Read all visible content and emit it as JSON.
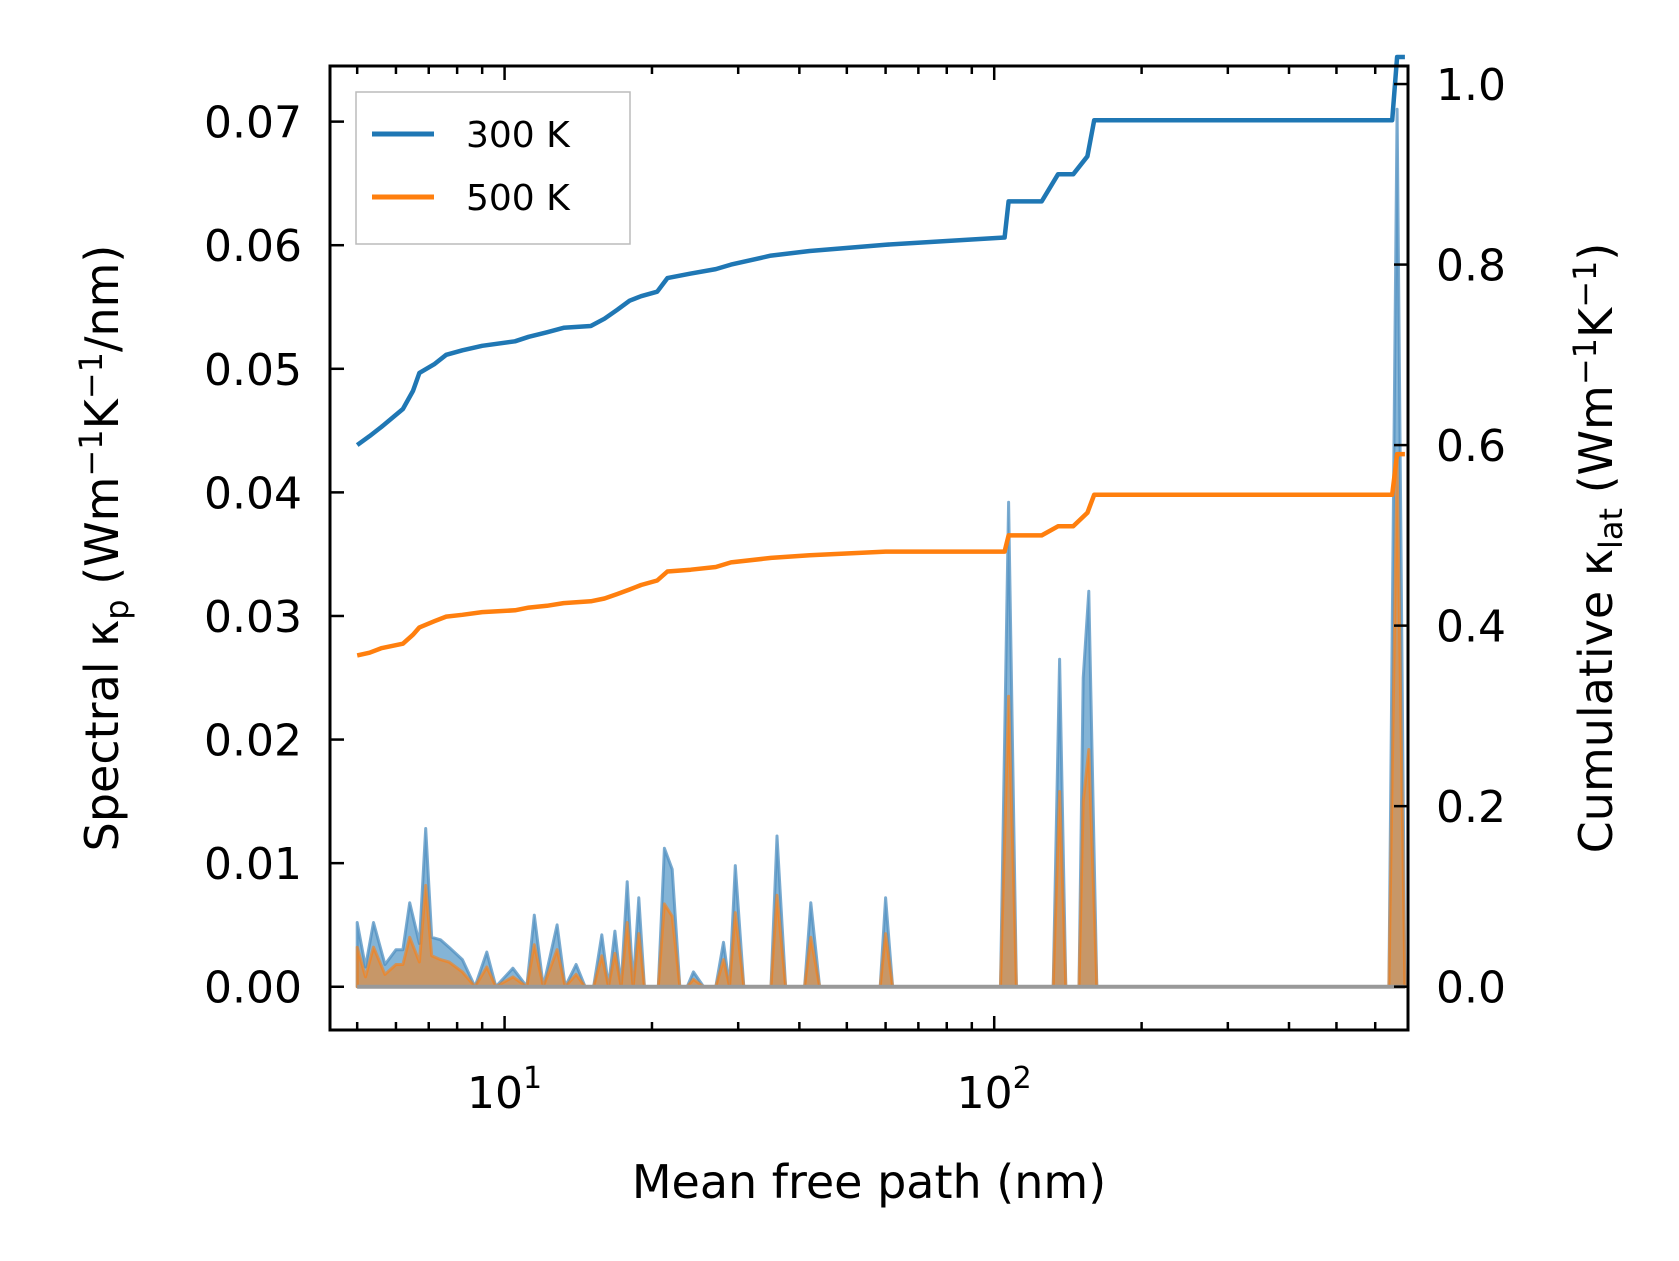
{
  "chart_data": {
    "type": "line",
    "xscale": "log",
    "xlabel": "Mean free path (nm)",
    "ylabel_left": "Spectral κp (Wm−1K−1/nm)",
    "ylabel_right": "Cumulative κlat (Wm−1K−1)",
    "ylabel_left_parts": {
      "pre": "Spectral κ",
      "sub": "p",
      "mid1": " (Wm",
      "sup1": "−1",
      "mid2": "K",
      "sup2": "−1",
      "post": "/nm)"
    },
    "ylabel_right_parts": {
      "pre": "Cumulative κ",
      "sub": "lat",
      "mid1": " (Wm",
      "sup1": "−1",
      "mid2": "K",
      "sup2": "−1",
      "post": ")"
    },
    "xlim": [
      4.4,
      700
    ],
    "ylim_left": [
      -0.0035,
      0.0745
    ],
    "ylim_right": [
      -0.048,
      1.02
    ],
    "x_ticks": [
      {
        "value": 10,
        "base": "10",
        "exp": "1"
      },
      {
        "value": 100,
        "base": "10",
        "exp": "2"
      }
    ],
    "y_ticks_left": [
      {
        "value": 0.0,
        "label": "0.00"
      },
      {
        "value": 0.01,
        "label": "0.01"
      },
      {
        "value": 0.02,
        "label": "0.02"
      },
      {
        "value": 0.03,
        "label": "0.03"
      },
      {
        "value": 0.04,
        "label": "0.04"
      },
      {
        "value": 0.05,
        "label": "0.05"
      },
      {
        "value": 0.06,
        "label": "0.06"
      },
      {
        "value": 0.07,
        "label": "0.07"
      }
    ],
    "y_ticks_right": [
      {
        "value": 0.0,
        "label": "0.0"
      },
      {
        "value": 0.2,
        "label": "0.2"
      },
      {
        "value": 0.4,
        "label": "0.4"
      },
      {
        "value": 0.6,
        "label": "0.6"
      },
      {
        "value": 0.8,
        "label": "0.8"
      },
      {
        "value": 1.0,
        "label": "1.0"
      }
    ],
    "legend": {
      "position": "top-left",
      "entries": [
        "300 K",
        "500 K"
      ]
    },
    "series": [
      {
        "name": "300 K",
        "color": "#1f77b4",
        "cumulative": [
          [
            5.0,
            0.6
          ],
          [
            5.3,
            0.61
          ],
          [
            5.6,
            0.62
          ],
          [
            6.2,
            0.64
          ],
          [
            6.5,
            0.66
          ],
          [
            6.7,
            0.68
          ],
          [
            7.2,
            0.69
          ],
          [
            7.6,
            0.7
          ],
          [
            8.2,
            0.705
          ],
          [
            9.0,
            0.71
          ],
          [
            10.5,
            0.715
          ],
          [
            11.2,
            0.72
          ],
          [
            12.2,
            0.725
          ],
          [
            13.2,
            0.73
          ],
          [
            15.0,
            0.732
          ],
          [
            16.0,
            0.74
          ],
          [
            17.0,
            0.75
          ],
          [
            18.0,
            0.76
          ],
          [
            19.0,
            0.765
          ],
          [
            20.5,
            0.77
          ],
          [
            21.5,
            0.785
          ],
          [
            24.0,
            0.79
          ],
          [
            27.0,
            0.795
          ],
          [
            29.0,
            0.8
          ],
          [
            35.0,
            0.81
          ],
          [
            42.0,
            0.815
          ],
          [
            60.0,
            0.822
          ],
          [
            105.0,
            0.83
          ],
          [
            107.0,
            0.87
          ],
          [
            125.0,
            0.87
          ],
          [
            135.0,
            0.9
          ],
          [
            145.0,
            0.9
          ],
          [
            155.0,
            0.92
          ],
          [
            160.0,
            0.96
          ],
          [
            650.0,
            0.96
          ],
          [
            665.0,
            1.03
          ],
          [
            690.0,
            1.03
          ]
        ],
        "spectral": [
          [
            5.0,
            0.0052
          ],
          [
            5.2,
            0.0016
          ],
          [
            5.4,
            0.0052
          ],
          [
            5.7,
            0.0018
          ],
          [
            6.0,
            0.003
          ],
          [
            6.2,
            0.003
          ],
          [
            6.4,
            0.0068
          ],
          [
            6.7,
            0.0035
          ],
          [
            6.9,
            0.0128
          ],
          [
            7.1,
            0.004
          ],
          [
            7.4,
            0.0038
          ],
          [
            7.7,
            0.0032
          ],
          [
            8.2,
            0.0022
          ],
          [
            8.7,
            0.0
          ],
          [
            9.2,
            0.0028
          ],
          [
            9.6,
            0.0
          ],
          [
            10.4,
            0.0015
          ],
          [
            11.1,
            0.0
          ],
          [
            11.5,
            0.0058
          ],
          [
            12.0,
            0.0
          ],
          [
            12.8,
            0.005
          ],
          [
            13.3,
            0.0
          ],
          [
            14.0,
            0.0018
          ],
          [
            14.6,
            0.0
          ],
          [
            15.2,
            0.0
          ],
          [
            15.8,
            0.0042
          ],
          [
            16.3,
            0.0
          ],
          [
            16.8,
            0.0045
          ],
          [
            17.3,
            0.0
          ],
          [
            17.8,
            0.0085
          ],
          [
            18.3,
            0.0
          ],
          [
            18.8,
            0.0072
          ],
          [
            19.3,
            0.0
          ],
          [
            20.0,
            0.0
          ],
          [
            20.6,
            0.0
          ],
          [
            21.2,
            0.0112
          ],
          [
            22.0,
            0.0095
          ],
          [
            22.8,
            0.0
          ],
          [
            23.6,
            0.0
          ],
          [
            24.3,
            0.0012
          ],
          [
            25.5,
            0.0
          ],
          [
            27.0,
            0.0
          ],
          [
            28.0,
            0.0036
          ],
          [
            28.8,
            0.0
          ],
          [
            29.6,
            0.0098
          ],
          [
            30.8,
            0.0
          ],
          [
            35.0,
            0.0
          ],
          [
            36.0,
            0.0122
          ],
          [
            37.5,
            0.0
          ],
          [
            41.0,
            0.0
          ],
          [
            42.2,
            0.0068
          ],
          [
            44.0,
            0.0
          ],
          [
            58.5,
            0.0
          ],
          [
            60.0,
            0.0072
          ],
          [
            62.0,
            0.0
          ],
          [
            103.0,
            0.0
          ],
          [
            107.0,
            0.0392
          ],
          [
            111.0,
            0.0
          ],
          [
            132.0,
            0.0
          ],
          [
            136.0,
            0.0265
          ],
          [
            140.0,
            0.0
          ],
          [
            149.0,
            0.0
          ],
          [
            152.0,
            0.025
          ],
          [
            156.0,
            0.032
          ],
          [
            162.0,
            0.0
          ],
          [
            640.0,
            0.0
          ],
          [
            665.0,
            0.071
          ],
          [
            690.0,
            0.0
          ]
        ]
      },
      {
        "name": "500 K",
        "color": "#ff7f0e",
        "cumulative": [
          [
            5.0,
            0.367
          ],
          [
            5.3,
            0.37
          ],
          [
            5.6,
            0.375
          ],
          [
            6.2,
            0.38
          ],
          [
            6.5,
            0.39
          ],
          [
            6.7,
            0.398
          ],
          [
            7.2,
            0.405
          ],
          [
            7.6,
            0.41
          ],
          [
            8.2,
            0.412
          ],
          [
            9.0,
            0.415
          ],
          [
            10.5,
            0.417
          ],
          [
            11.2,
            0.42
          ],
          [
            12.2,
            0.422
          ],
          [
            13.2,
            0.425
          ],
          [
            15.0,
            0.427
          ],
          [
            16.0,
            0.43
          ],
          [
            17.0,
            0.435
          ],
          [
            18.0,
            0.44
          ],
          [
            19.0,
            0.445
          ],
          [
            20.5,
            0.45
          ],
          [
            21.5,
            0.46
          ],
          [
            24.0,
            0.462
          ],
          [
            27.0,
            0.465
          ],
          [
            29.0,
            0.47
          ],
          [
            35.0,
            0.475
          ],
          [
            42.0,
            0.478
          ],
          [
            60.0,
            0.482
          ],
          [
            105.0,
            0.482
          ],
          [
            107.0,
            0.5
          ],
          [
            125.0,
            0.5
          ],
          [
            135.0,
            0.51
          ],
          [
            145.0,
            0.51
          ],
          [
            155.0,
            0.525
          ],
          [
            160.0,
            0.545
          ],
          [
            650.0,
            0.545
          ],
          [
            665.0,
            0.59
          ],
          [
            690.0,
            0.59
          ]
        ],
        "spectral": [
          [
            5.0,
            0.0032
          ],
          [
            5.2,
            0.0008
          ],
          [
            5.4,
            0.0032
          ],
          [
            5.7,
            0.001
          ],
          [
            6.0,
            0.0018
          ],
          [
            6.2,
            0.0018
          ],
          [
            6.4,
            0.004
          ],
          [
            6.7,
            0.002
          ],
          [
            6.9,
            0.0082
          ],
          [
            7.1,
            0.0025
          ],
          [
            7.4,
            0.0022
          ],
          [
            7.7,
            0.002
          ],
          [
            8.2,
            0.0012
          ],
          [
            8.7,
            0.0
          ],
          [
            9.2,
            0.0016
          ],
          [
            9.6,
            0.0
          ],
          [
            10.4,
            0.0008
          ],
          [
            11.1,
            0.0
          ],
          [
            11.5,
            0.0034
          ],
          [
            12.0,
            0.0
          ],
          [
            12.8,
            0.003
          ],
          [
            13.3,
            0.0
          ],
          [
            14.0,
            0.001
          ],
          [
            14.6,
            0.0
          ],
          [
            15.2,
            0.0
          ],
          [
            15.8,
            0.0025
          ],
          [
            16.3,
            0.0
          ],
          [
            16.8,
            0.0027
          ],
          [
            17.3,
            0.0
          ],
          [
            17.8,
            0.0052
          ],
          [
            18.3,
            0.0
          ],
          [
            18.8,
            0.0043
          ],
          [
            19.3,
            0.0
          ],
          [
            20.0,
            0.0
          ],
          [
            20.6,
            0.0
          ],
          [
            21.2,
            0.0067
          ],
          [
            22.0,
            0.0057
          ],
          [
            22.8,
            0.0
          ],
          [
            23.6,
            0.0
          ],
          [
            24.3,
            0.0006
          ],
          [
            25.5,
            0.0
          ],
          [
            27.0,
            0.0
          ],
          [
            28.0,
            0.0022
          ],
          [
            28.8,
            0.0
          ],
          [
            29.6,
            0.006
          ],
          [
            30.8,
            0.0
          ],
          [
            35.0,
            0.0
          ],
          [
            36.0,
            0.0074
          ],
          [
            37.5,
            0.0
          ],
          [
            41.0,
            0.0
          ],
          [
            42.2,
            0.004
          ],
          [
            44.0,
            0.0
          ],
          [
            58.5,
            0.0
          ],
          [
            60.0,
            0.0043
          ],
          [
            62.0,
            0.0
          ],
          [
            103.0,
            0.0
          ],
          [
            107.0,
            0.0235
          ],
          [
            111.0,
            0.0
          ],
          [
            132.0,
            0.0
          ],
          [
            136.0,
            0.0158
          ],
          [
            140.0,
            0.0
          ],
          [
            149.0,
            0.0
          ],
          [
            152.0,
            0.015
          ],
          [
            156.0,
            0.0192
          ],
          [
            162.0,
            0.0
          ],
          [
            640.0,
            0.0
          ],
          [
            665.0,
            0.0425
          ],
          [
            690.0,
            0.0
          ]
        ]
      }
    ]
  }
}
